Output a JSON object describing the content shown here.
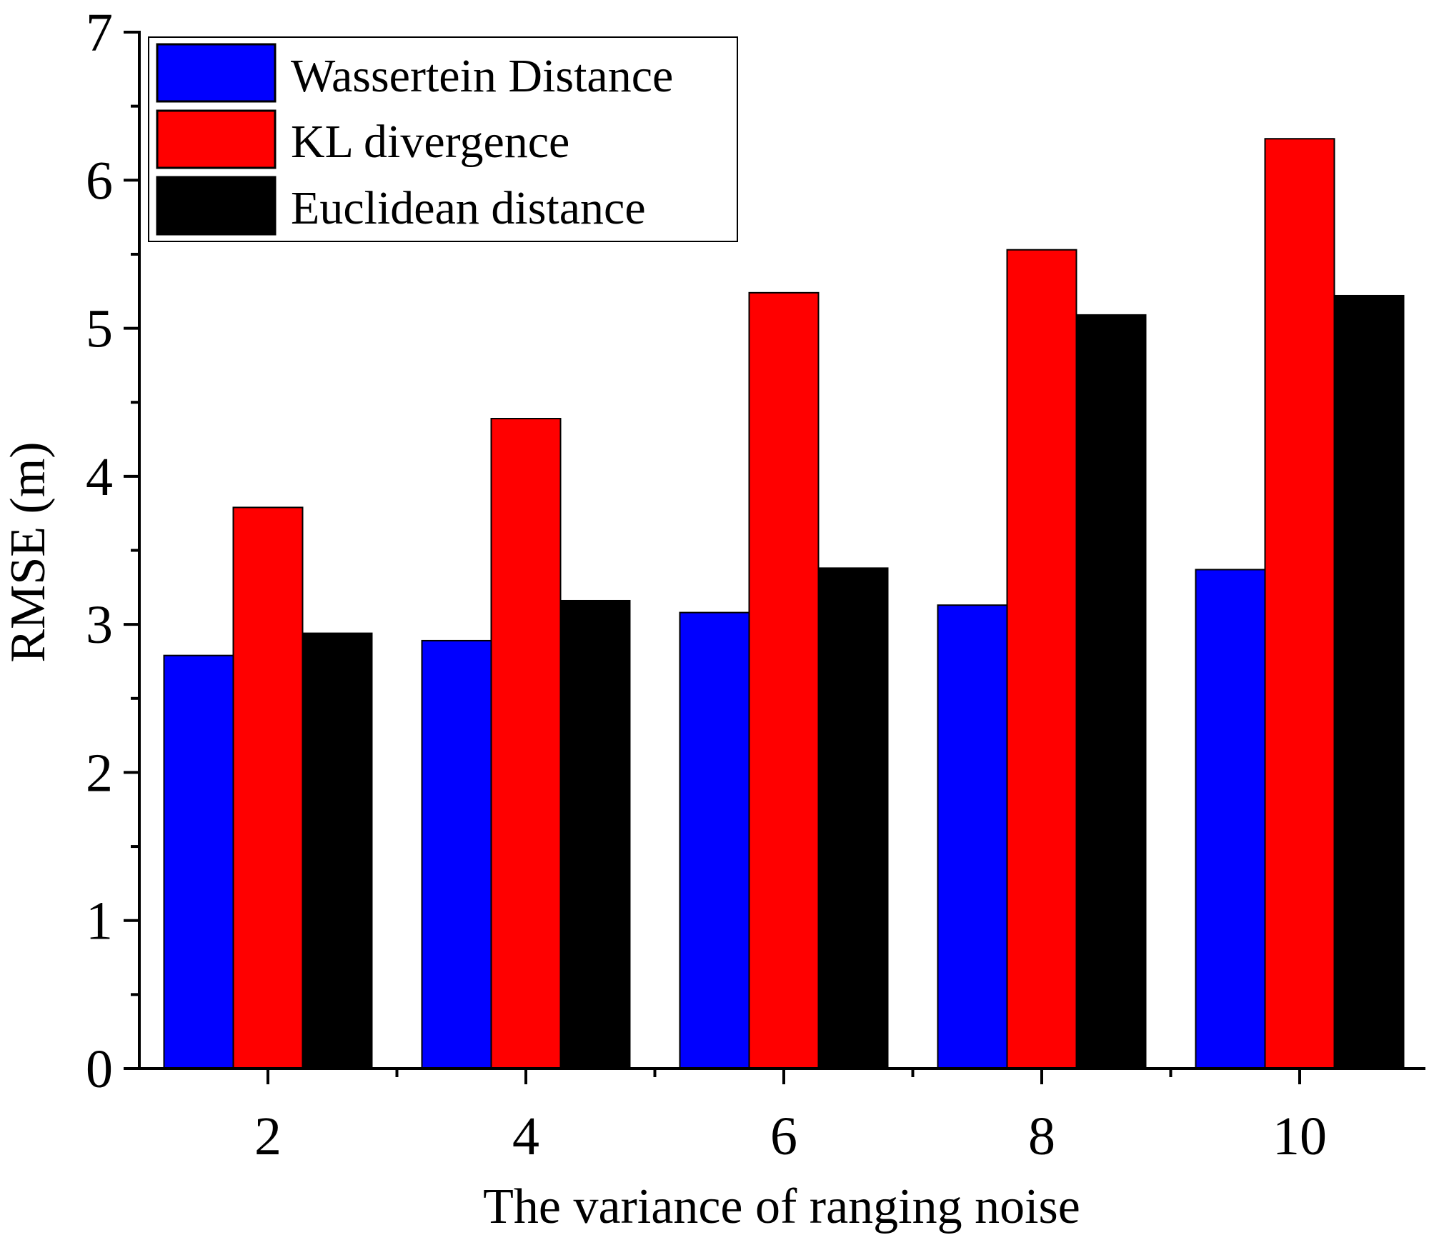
{
  "chart_data": {
    "type": "bar",
    "title": "",
    "xlabel": "The variance of ranging noise",
    "ylabel": "RMSE (m)",
    "categories": [
      "2",
      "4",
      "6",
      "8",
      "10"
    ],
    "ylim": [
      0,
      7
    ],
    "yticks": [
      "0",
      "1",
      "2",
      "3",
      "4",
      "5",
      "6",
      "7"
    ],
    "legend_position": "top-left",
    "grid": false,
    "series": [
      {
        "name": "Wassertein Distance",
        "color": "#0000ff",
        "values": [
          2.79,
          2.89,
          3.08,
          3.13,
          3.37
        ]
      },
      {
        "name": "KL divergence",
        "color": "#ff0000",
        "values": [
          3.79,
          4.39,
          5.24,
          5.53,
          6.28
        ]
      },
      {
        "name": "Euclidean distance",
        "color": "#000000",
        "values": [
          2.94,
          3.16,
          3.38,
          5.09,
          5.22
        ]
      }
    ]
  }
}
